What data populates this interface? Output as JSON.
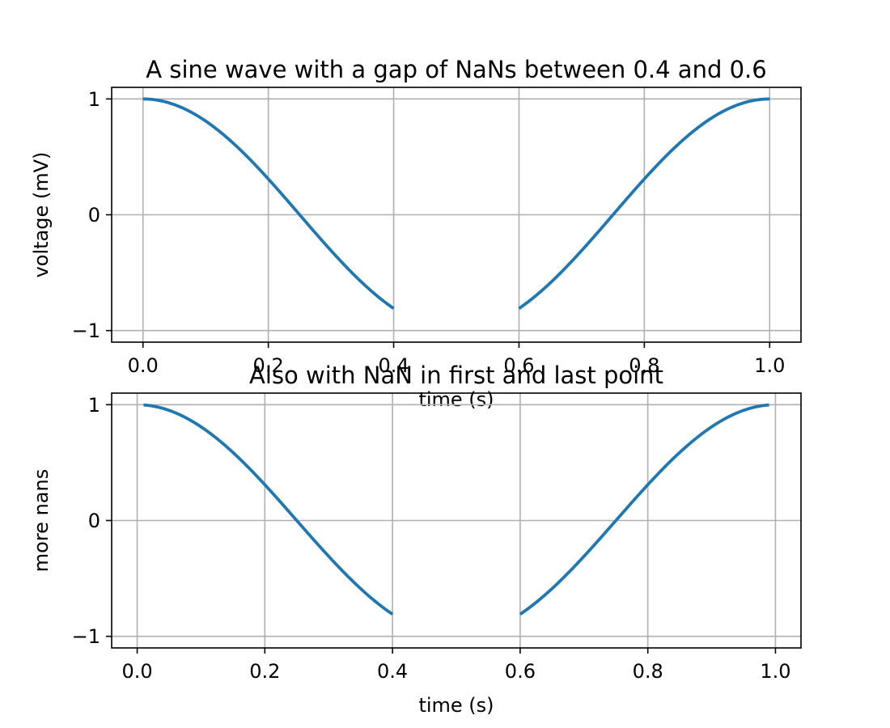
{
  "chart_data": [
    {
      "type": "line",
      "title": "A sine wave with a gap of NaNs between 0.4 and 0.6",
      "xlabel": "time (s)",
      "ylabel": "voltage (mV)",
      "xlim": [
        -0.05,
        1.05
      ],
      "ylim": [
        -1.1,
        1.1
      ],
      "xticks": [
        0.0,
        0.2,
        0.4,
        0.6,
        0.8,
        1.0
      ],
      "xtick_labels": [
        "0.0",
        "0.2",
        "0.4",
        "0.6",
        "0.8",
        "1.0"
      ],
      "yticks": [
        -1,
        0,
        1
      ],
      "ytick_labels": [
        "−1",
        "0",
        "1"
      ],
      "grid": true,
      "series": [
        {
          "color": "#1f77b4",
          "formula": "cos(2*pi*t)",
          "segments": [
            [
              0.0,
              0.4
            ],
            [
              0.6,
              1.0
            ]
          ]
        }
      ]
    },
    {
      "type": "line",
      "title": "Also with NaN in first and last point",
      "xlabel": "time (s)",
      "ylabel": "more nans",
      "xlim": [
        -0.04,
        1.04
      ],
      "ylim": [
        -1.1,
        1.1
      ],
      "xticks": [
        0.0,
        0.2,
        0.4,
        0.6,
        0.8,
        1.0
      ],
      "xtick_labels": [
        "0.0",
        "0.2",
        "0.4",
        "0.6",
        "0.8",
        "1.0"
      ],
      "yticks": [
        -1,
        0,
        1
      ],
      "ytick_labels": [
        "−1",
        "0",
        "1"
      ],
      "grid": true,
      "series": [
        {
          "color": "#1f77b4",
          "formula": "cos(2*pi*t)",
          "segments": [
            [
              0.01,
              0.4
            ],
            [
              0.6,
              0.99
            ]
          ]
        }
      ]
    }
  ]
}
